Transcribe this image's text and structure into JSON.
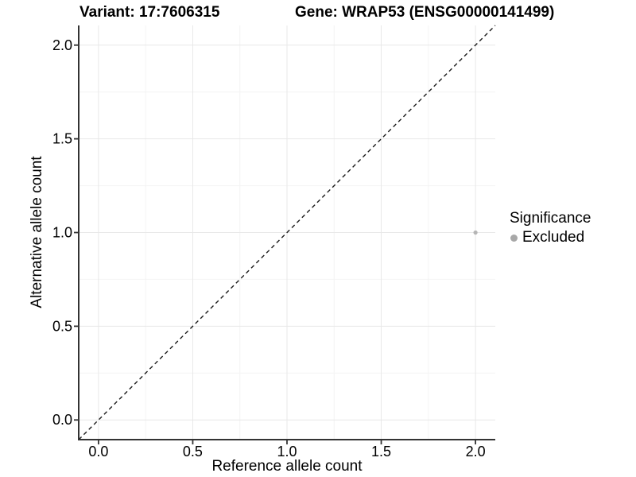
{
  "chart_data": {
    "type": "scatter",
    "title_left": "Variant: 17:7606315",
    "title_right": "Gene: WRAP53 (ENSG00000141499)",
    "xlabel": "Reference allele count",
    "ylabel": "Alternative allele count",
    "xlim": [
      -0.105,
      2.105
    ],
    "ylim": [
      -0.105,
      2.105
    ],
    "x_ticks": [
      0.0,
      0.5,
      1.0,
      1.5,
      2.0
    ],
    "y_ticks": [
      0.0,
      0.5,
      1.0,
      1.5,
      2.0
    ],
    "x_minor_ticks": [
      0.25,
      0.75,
      1.25,
      1.75
    ],
    "y_minor_ticks": [
      0.25,
      0.75,
      1.25,
      1.75
    ],
    "tick_decimals": 1,
    "grid": true,
    "reference_line": {
      "slope": 1,
      "intercept": 0,
      "style": "dashed",
      "color": "#1a1a1a"
    },
    "series": [
      {
        "name": "Excluded",
        "color": "#b5b5b5",
        "points": [
          {
            "x": 2.0,
            "y": 1.0
          }
        ]
      }
    ],
    "legend": {
      "title": "Significance",
      "position": "right",
      "items": [
        {
          "label": "Excluded",
          "color": "#a8a8a8"
        }
      ]
    },
    "colors": {
      "grid_major": "#e8e8e8",
      "grid_minor": "#f4f4f4",
      "axis_line": "#333333",
      "tick_mark": "#333333",
      "text": "#000000"
    }
  }
}
